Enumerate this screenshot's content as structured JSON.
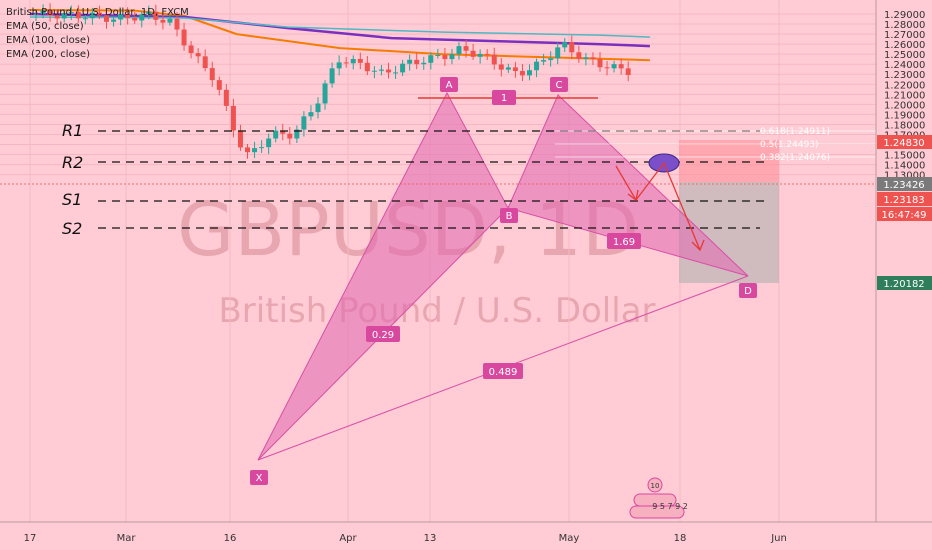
{
  "legend": {
    "symbol_line": "British Pound / U.S. Dollar, 1D, FXCM",
    "ema50": "EMA (50, close)",
    "ema100": "EMA (100, close)",
    "ema200": "EMA (200, close)"
  },
  "watermark": {
    "ticker": "GBPUSD, 1D",
    "name": "British Pound / U.S. Dollar"
  },
  "levels": {
    "r1": "R1",
    "r2": "R2",
    "s1": "S1",
    "s2": "S2"
  },
  "fib": {
    "l618": "0.618(1.24911)",
    "l5": "0.5(1.24493)",
    "l382": "0.382(1.24076)"
  },
  "pattern": {
    "x": "X",
    "a": "A",
    "b": "B",
    "c": "C",
    "d": "D",
    "r1": "1",
    "xb": "0.29",
    "xd": "0.489",
    "bd": "1.69"
  },
  "price_tags": {
    "t1": "1.24830",
    "t2": "1.23426",
    "t3": "1.23183",
    "t4": "16:47:49",
    "t5": "1.20182"
  },
  "badge": {
    "top": "10",
    "digits": "9 5 7 9 2"
  },
  "colors": {
    "background": "#ffccd5",
    "up": "#26a69a",
    "down": "#ef5350",
    "ema50": "#f57c00",
    "ema100": "#7b2fbf",
    "ema200": "#4fb8c4",
    "pattern": "#e066b0"
  },
  "chart_data": {
    "type": "line",
    "title": "British Pound / U.S. Dollar, 1D, FXCM",
    "x_ticks": [
      "17",
      "Mar",
      "16",
      "Apr",
      "13",
      "May",
      "18",
      "Jun"
    ],
    "y_ticks": [
      "1.29000",
      "1.28000",
      "1.27000",
      "1.26000",
      "1.25000",
      "1.24000",
      "1.23000",
      "1.22000",
      "1.21000",
      "1.20000",
      "1.19000",
      "1.18000",
      "1.17000",
      "1.16000",
      "1.15000",
      "1.14000",
      "1.13000"
    ],
    "ylim": [
      1.1225,
      1.2955
    ],
    "series": [
      {
        "name": "EMA (50, close)",
        "x": [
          "2020-02-17",
          "2020-03-02",
          "2020-03-09",
          "2020-03-16",
          "2020-03-30",
          "2020-04-13",
          "2020-04-27",
          "2020-05-11"
        ],
        "values": [
          1.294,
          1.2935,
          1.288,
          1.27,
          1.256,
          1.25,
          1.247,
          1.244
        ]
      },
      {
        "name": "EMA (100, close)",
        "x": [
          "2020-02-17",
          "2020-03-09",
          "2020-03-23",
          "2020-04-06",
          "2020-04-20",
          "2020-05-04",
          "2020-05-11"
        ],
        "values": [
          1.29,
          1.287,
          1.276,
          1.266,
          1.263,
          1.26,
          1.258
        ]
      },
      {
        "name": "EMA (200, close)",
        "x": [
          "2020-02-17",
          "2020-03-09",
          "2020-03-23",
          "2020-04-13",
          "2020-05-04",
          "2020-05-11"
        ],
        "values": [
          1.287,
          1.286,
          1.277,
          1.272,
          1.269,
          1.267
        ]
      }
    ],
    "pattern_points": [
      {
        "label": "X",
        "date": "2020-03-20",
        "price": 1.1425
      },
      {
        "label": "A",
        "date": "2020-04-14",
        "price": 1.2645
      },
      {
        "label": "B",
        "date": "2020-04-21",
        "price": 1.229
      },
      {
        "label": "C",
        "date": "2020-04-30",
        "price": 1.2645
      },
      {
        "label": "D",
        "date": "2020-05-26",
        "price": 1.202
      }
    ],
    "horizontal_levels": [
      {
        "label": "R1",
        "price": 1.2493
      },
      {
        "label": "R2",
        "price": 1.2408
      },
      {
        "label": "S1",
        "price": 1.2318
      },
      {
        "label": "S2",
        "price": 1.2195
      }
    ],
    "ratios": [
      "0.29",
      "0.489",
      "1.69",
      "1"
    ],
    "price_labels": [
      "1.24830",
      "1.23426",
      "1.23183",
      "1.20182"
    ]
  }
}
